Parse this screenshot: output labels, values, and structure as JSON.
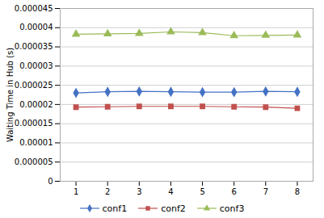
{
  "chart_data": {
    "type": "line",
    "x": [
      1,
      2,
      3,
      4,
      5,
      6,
      7,
      8
    ],
    "series": [
      {
        "name": "conf1",
        "color": "#4472C4",
        "marker": "diamond",
        "values": [
          2.3e-05,
          2.33e-05,
          2.34e-05,
          2.33e-05,
          2.32e-05,
          2.32e-05,
          2.34e-05,
          2.33e-05
        ]
      },
      {
        "name": "conf2",
        "color": "#C0504D",
        "marker": "square",
        "values": [
          1.93e-05,
          1.94e-05,
          1.95e-05,
          1.95e-05,
          1.95e-05,
          1.94e-05,
          1.93e-05,
          1.9e-05
        ]
      },
      {
        "name": "conf3",
        "color": "#9BBB59",
        "marker": "triangle",
        "values": [
          3.83e-05,
          3.84e-05,
          3.85e-05,
          3.89e-05,
          3.87e-05,
          3.79e-05,
          3.8e-05,
          3.81e-05
        ]
      }
    ],
    "ylabel": "Waiting Time in Hub (s)",
    "xlim": [
      0.5,
      8.5
    ],
    "xticks": [
      1,
      2,
      3,
      4,
      5,
      6,
      7,
      8
    ],
    "ylim": [
      0,
      4.5e-05
    ],
    "yticks": [
      0,
      5e-06,
      1e-05,
      1.5e-05,
      2e-05,
      2.5e-05,
      3e-05,
      3.5e-05,
      4e-05,
      4.5e-05
    ],
    "grid": true,
    "legend": "bottom"
  }
}
